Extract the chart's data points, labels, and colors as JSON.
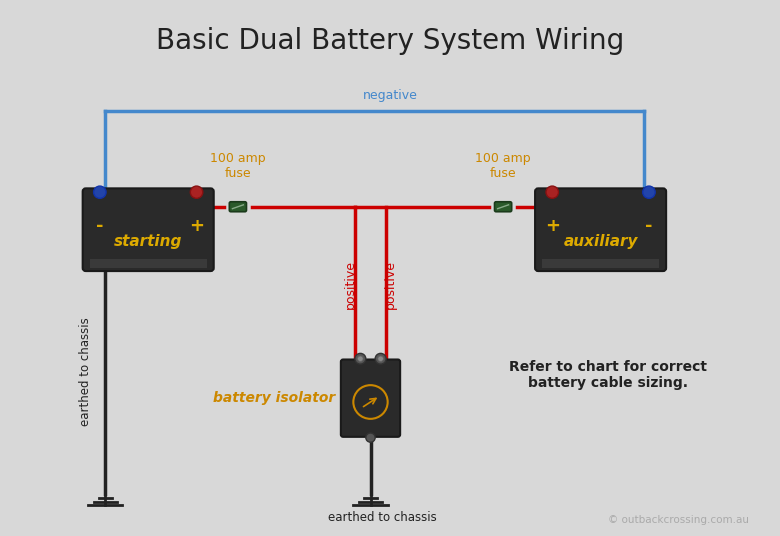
{
  "title": "Basic Dual Battery System Wiring",
  "title_fontsize": 20,
  "bg_color": "#d8d8d8",
  "wire_red": "#cc0000",
  "wire_blue": "#4488cc",
  "wire_black": "#222222",
  "label_color_orange": "#cc8800",
  "label_color_blue": "#4488cc",
  "label_color_black": "#222222",
  "label_color_white": "#ffffff",
  "label_color_gray": "#aaaaaa",
  "battery_color_dark": "#333333",
  "battery_color_darker": "#222222",
  "fuse_color": "#444444",
  "note_text": "Refer to chart for correct\nbattery cable sizing.",
  "copyright_text": "© outbackcrossing.com.au",
  "left_battery_label": "starting",
  "right_battery_label": "auxiliary",
  "isolator_label": "battery isolator",
  "negative_label": "negative",
  "positive_label_left": "positive",
  "positive_label_right": "positive",
  "fuse_label_left": "100 amp\nfuse",
  "fuse_label_right": "100 amp\nfuse",
  "earth_label_left": "earthed to chassis",
  "earth_label_bottom": "earthed to chassis"
}
